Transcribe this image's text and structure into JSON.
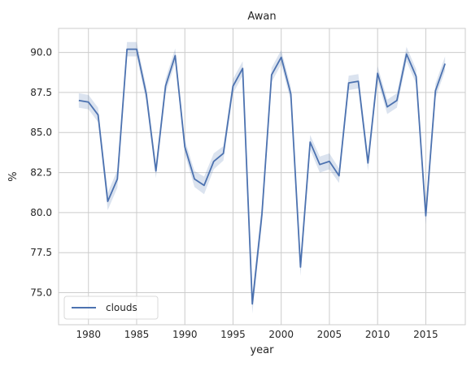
{
  "chart_data": {
    "type": "line",
    "title": "Awan",
    "xlabel": "year",
    "ylabel": "%",
    "xlim": [
      1976.9,
      2019.1
    ],
    "ylim": [
      73.0,
      91.5
    ],
    "xticks": [
      1980,
      1985,
      1990,
      1995,
      2000,
      2005,
      2010,
      2015
    ],
    "yticks": [
      75.0,
      77.5,
      80.0,
      82.5,
      85.0,
      87.5,
      90.0
    ],
    "xtick_labels": [
      "1980",
      "1985",
      "1990",
      "1995",
      "2000",
      "2005",
      "2010",
      "2015"
    ],
    "ytick_labels": [
      "75.0",
      "77.5",
      "80.0",
      "82.5",
      "85.0",
      "87.5",
      "90.0"
    ],
    "grid": true,
    "legend_position": "lower-left",
    "series": [
      {
        "name": "clouds",
        "color": "#4c72b0",
        "x": [
          1979,
          1980,
          1981,
          1982,
          1983,
          1984,
          1985,
          1986,
          1987,
          1988,
          1989,
          1990,
          1991,
          1992,
          1993,
          1994,
          1995,
          1996,
          1997,
          1998,
          1999,
          2000,
          2001,
          2002,
          2003,
          2004,
          2005,
          2006,
          2007,
          2008,
          2009,
          2010,
          2011,
          2012,
          2013,
          2014,
          2015,
          2016,
          2017
        ],
        "y": [
          87.0,
          86.9,
          86.1,
          80.7,
          82.1,
          90.2,
          90.2,
          87.4,
          82.6,
          87.9,
          89.8,
          84.1,
          82.1,
          81.7,
          83.2,
          83.7,
          87.9,
          89.0,
          74.3,
          79.9,
          88.6,
          89.7,
          87.4,
          76.6,
          84.4,
          83.0,
          83.2,
          82.3,
          88.1,
          88.2,
          83.1,
          88.7,
          86.6,
          87.0,
          89.9,
          88.5,
          79.8,
          87.6,
          89.3
        ],
        "ci_halfwidth": [
          0.45,
          0.45,
          0.45,
          0.55,
          0.55,
          0.45,
          0.45,
          0.45,
          0.45,
          0.45,
          0.45,
          0.45,
          0.5,
          0.55,
          0.5,
          0.45,
          0.45,
          0.45,
          0.6,
          0.6,
          0.45,
          0.45,
          0.45,
          0.55,
          0.45,
          0.5,
          0.5,
          0.45,
          0.45,
          0.45,
          0.5,
          0.45,
          0.45,
          0.45,
          0.45,
          0.45,
          0.55,
          0.45,
          0.45
        ]
      }
    ]
  }
}
